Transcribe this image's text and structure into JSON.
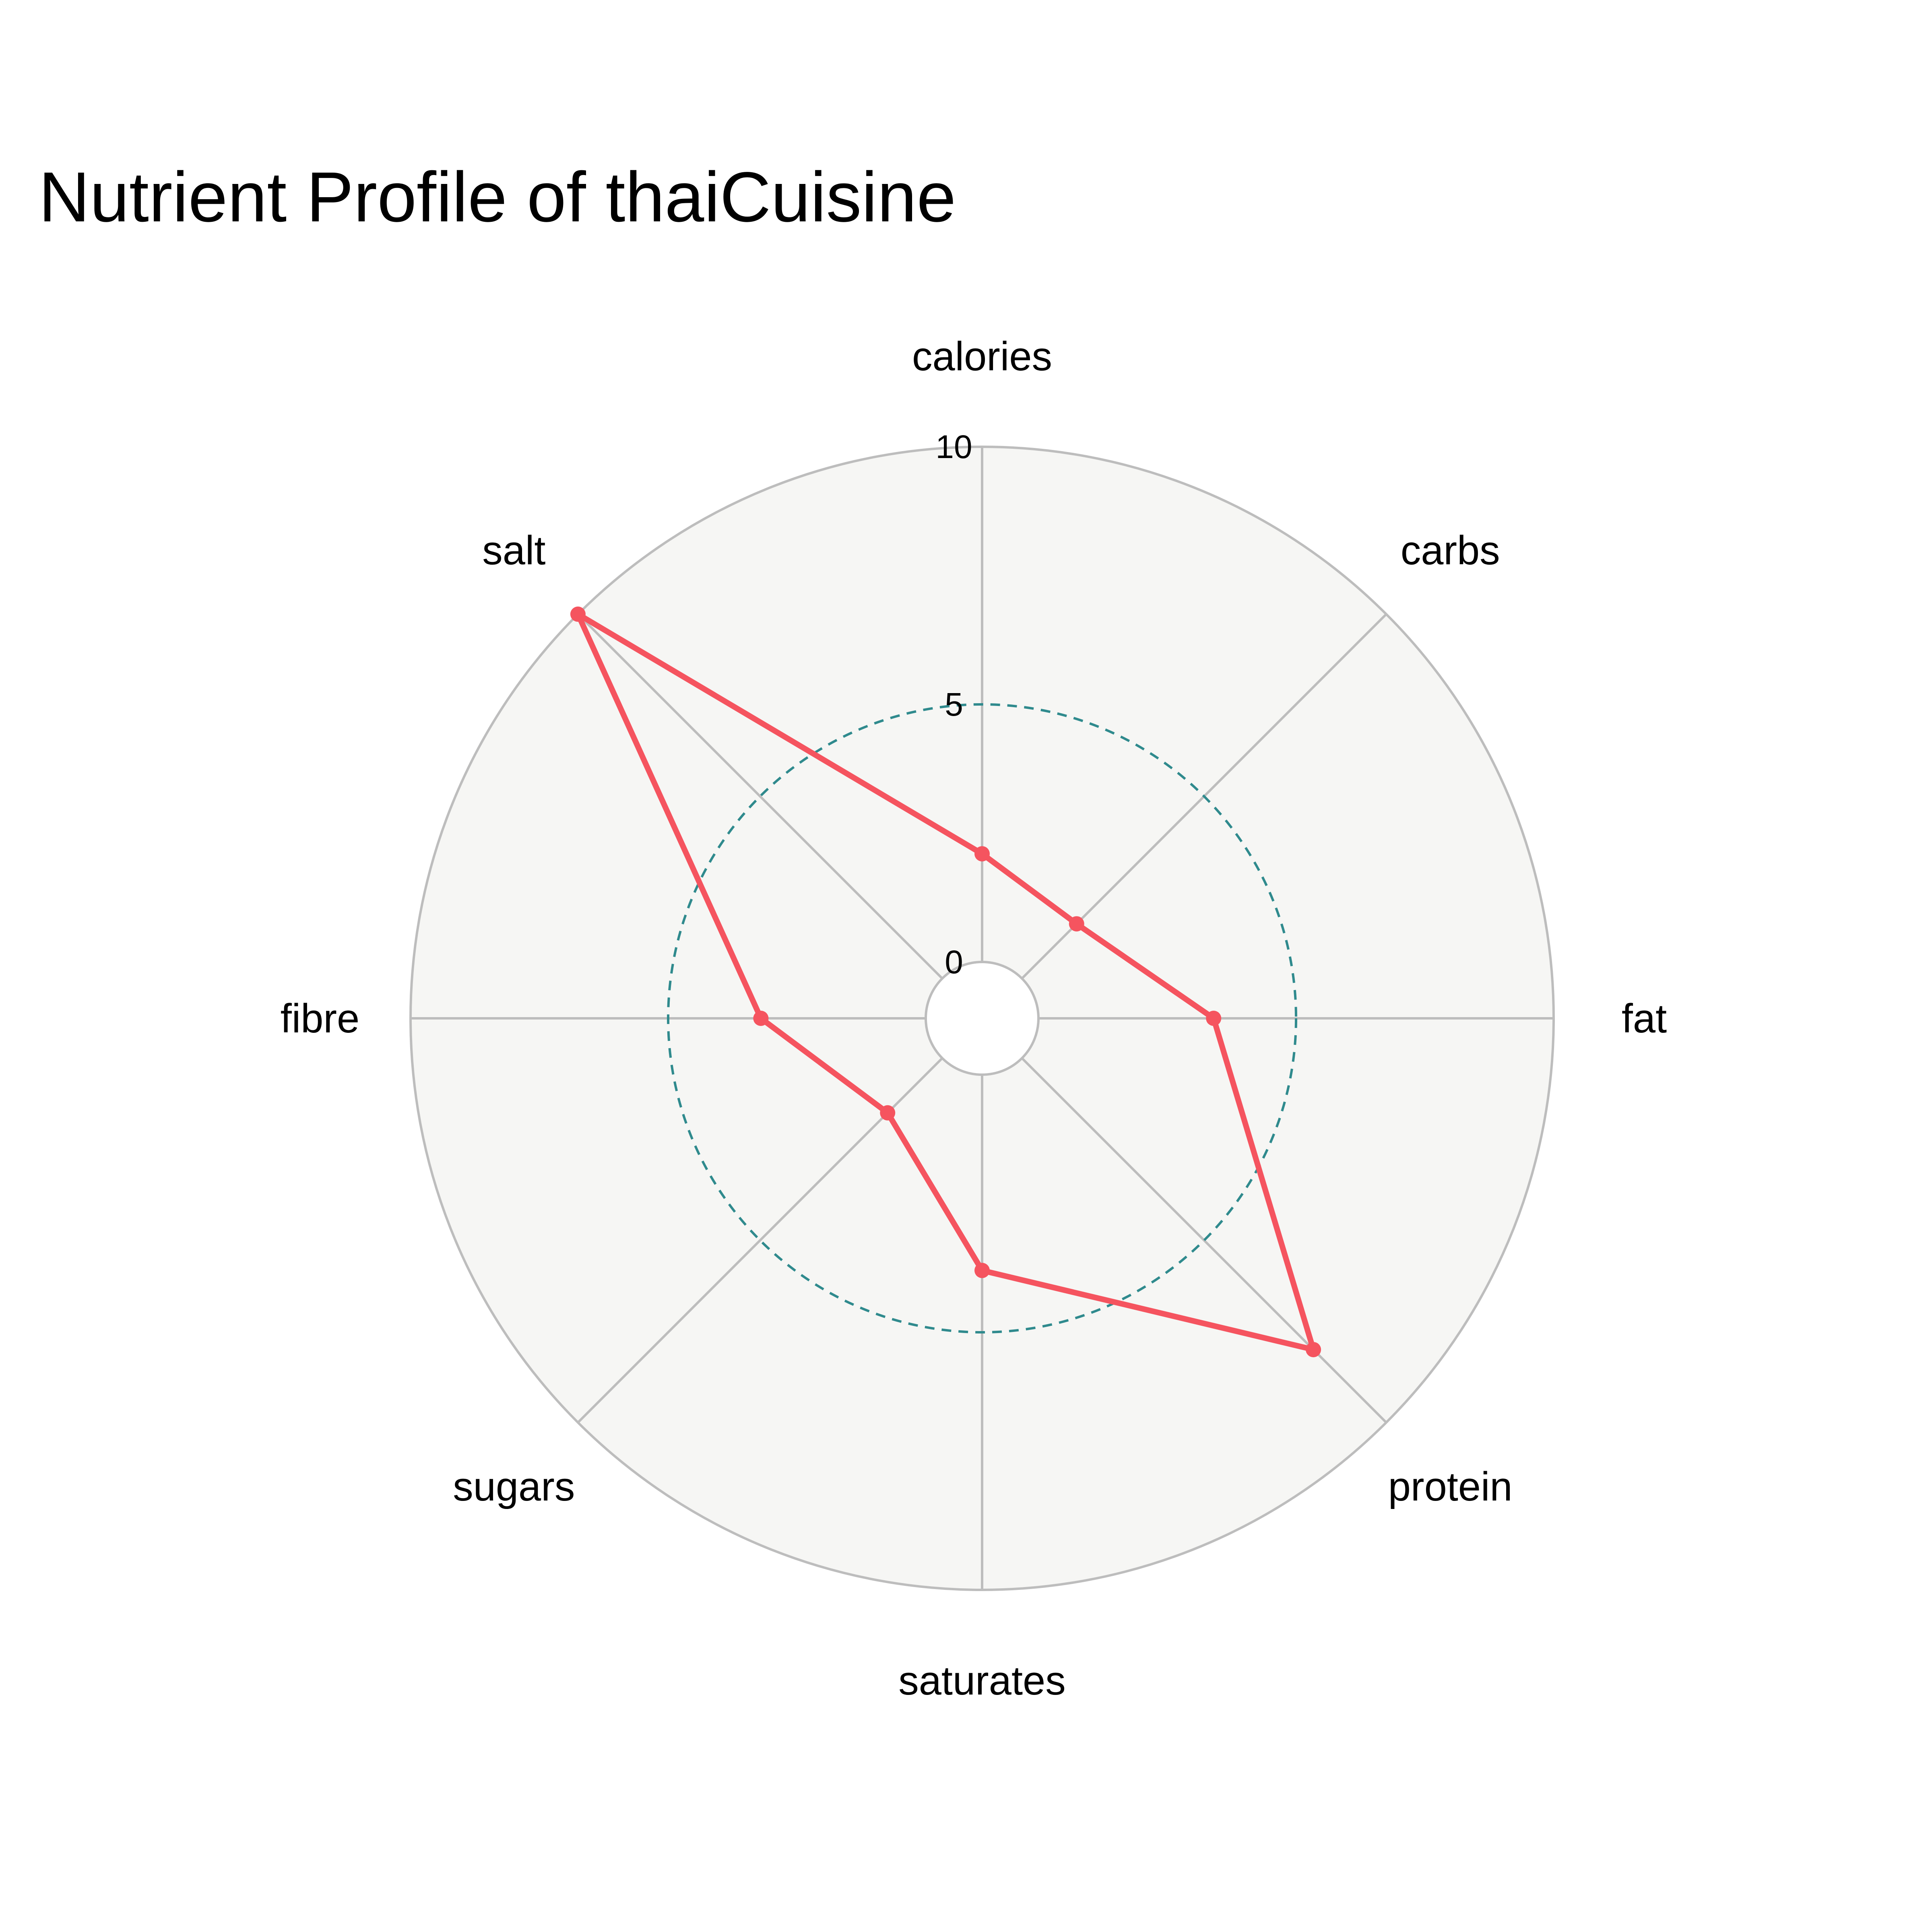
{
  "chart_data": {
    "type": "radar",
    "title": "Nutrient Profile of thaiCuisine",
    "categories": [
      "calories",
      "carbs",
      "fat",
      "protein",
      "saturates",
      "sugars",
      "fibre",
      "salt"
    ],
    "series": [
      {
        "values": [
          2.1,
          1.5,
          3.4,
          8.0,
          3.8,
          1.5,
          3.2,
          10.0
        ]
      }
    ],
    "rlim": [
      0,
      10
    ],
    "r_ticks": [
      0,
      5,
      10
    ],
    "r_tick_labels": [
      "0",
      "5",
      "10"
    ],
    "grid": true,
    "legend": false,
    "colors": {
      "series_line": "#f5545f",
      "series_marker": "#f5545f",
      "plot_background": "#f6f6f4",
      "spoke": "#bdbdbd",
      "outer_ring": "#bdbdbd",
      "mid_ring": "#2f8a8d",
      "inner_ring": "#bdbdbd"
    }
  }
}
